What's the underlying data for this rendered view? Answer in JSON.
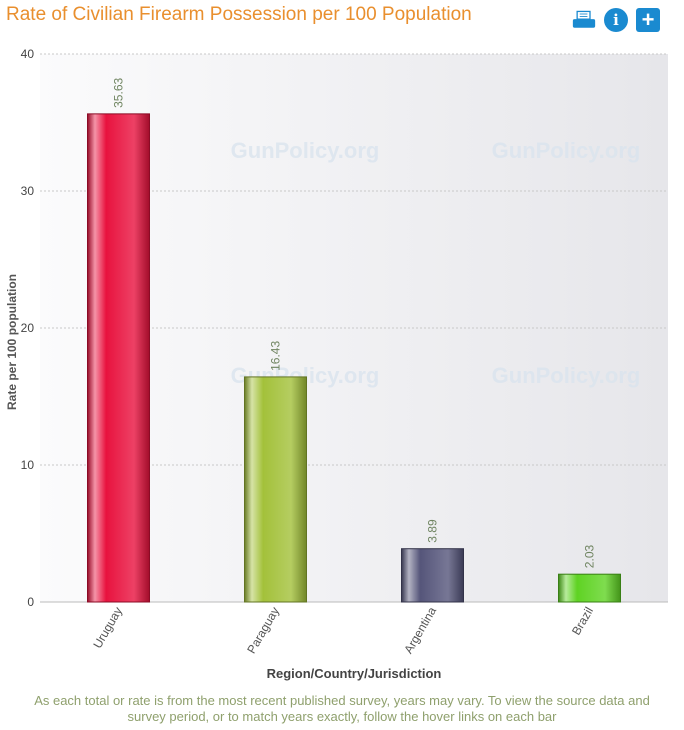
{
  "header": {
    "title": "Rate of Civilian Firearm Possession per 100 Population"
  },
  "toolbar": {
    "buttons": [
      {
        "icon": "printer-icon"
      },
      {
        "icon": "info-icon",
        "glyph": "i"
      },
      {
        "icon": "plus-icon",
        "glyph": "+"
      }
    ]
  },
  "watermark": "GunPolicy.org",
  "footnote": "As each total or rate is from the most recent published survey, years may vary. To view the source data and survey period, or to match years exactly, follow the hover links on each bar",
  "chart_data": {
    "type": "bar",
    "categories": [
      "Uruguay",
      "Paraguay",
      "Argentina",
      "Brazil"
    ],
    "values": [
      35.63,
      16.43,
      3.89,
      2.03
    ],
    "data_labels": [
      "35.63",
      "16.43",
      "3.89",
      "2.03"
    ],
    "colors": [
      "#e8123e",
      "#a3c13a",
      "#55557a",
      "#5fd323"
    ],
    "xlabel": "Region/Country/Jurisdiction",
    "ylabel": "Rate per 100 population",
    "ylim": [
      0,
      40
    ],
    "yticks": [
      0,
      10,
      20,
      30,
      40
    ],
    "grid": true,
    "legend": "none"
  }
}
